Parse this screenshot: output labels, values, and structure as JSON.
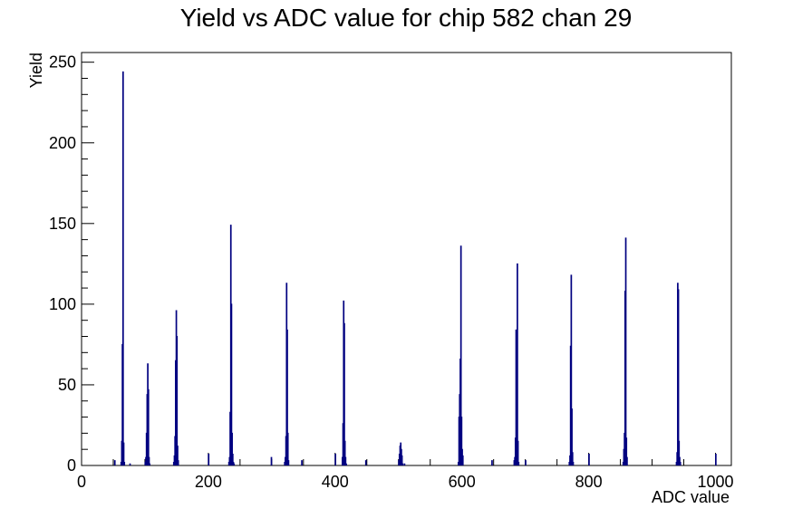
{
  "chart_data": {
    "type": "histogram",
    "title": "Yield vs ADC value for chip 582 chan 29",
    "xlabel": "ADC value",
    "ylabel": "Yield",
    "xlim": [
      0,
      1025
    ],
    "ylim": [
      0,
      256
    ],
    "x_ticks": [
      0,
      200,
      400,
      600,
      800,
      1000
    ],
    "y_ticks": [
      0,
      50,
      100,
      150,
      200,
      250
    ],
    "bin_width": 1,
    "line_color": "#000080",
    "grid": false,
    "legend": "none",
    "bins": [
      [
        52,
        3
      ],
      [
        62,
        2
      ],
      [
        63,
        15
      ],
      [
        64,
        75
      ],
      [
        65,
        244
      ],
      [
        66,
        14
      ],
      [
        67,
        2
      ],
      [
        76,
        1
      ],
      [
        100,
        2
      ],
      [
        101,
        5
      ],
      [
        102,
        20
      ],
      [
        103,
        44
      ],
      [
        104,
        63
      ],
      [
        105,
        47
      ],
      [
        106,
        5
      ],
      [
        107,
        1
      ],
      [
        145,
        2
      ],
      [
        146,
        6
      ],
      [
        147,
        18
      ],
      [
        148,
        65
      ],
      [
        149,
        96
      ],
      [
        150,
        80
      ],
      [
        151,
        12
      ],
      [
        152,
        3
      ],
      [
        200,
        7
      ],
      [
        232,
        2
      ],
      [
        233,
        5
      ],
      [
        234,
        33
      ],
      [
        235,
        149
      ],
      [
        236,
        100
      ],
      [
        237,
        20
      ],
      [
        238,
        7
      ],
      [
        239,
        2
      ],
      [
        240,
        1
      ],
      [
        299,
        5
      ],
      [
        320,
        2
      ],
      [
        321,
        5
      ],
      [
        322,
        18
      ],
      [
        323,
        113
      ],
      [
        324,
        84
      ],
      [
        325,
        20
      ],
      [
        326,
        3
      ],
      [
        347,
        3
      ],
      [
        400,
        7
      ],
      [
        411,
        5
      ],
      [
        412,
        26
      ],
      [
        413,
        102
      ],
      [
        414,
        88
      ],
      [
        415,
        15
      ],
      [
        416,
        5
      ],
      [
        417,
        1
      ],
      [
        448,
        3
      ],
      [
        500,
        3
      ],
      [
        501,
        7
      ],
      [
        502,
        12
      ],
      [
        503,
        14
      ],
      [
        504,
        10
      ],
      [
        505,
        6
      ],
      [
        506,
        1
      ],
      [
        509,
        1
      ],
      [
        594,
        2
      ],
      [
        595,
        30
      ],
      [
        596,
        44
      ],
      [
        597,
        66
      ],
      [
        598,
        136
      ],
      [
        599,
        30
      ],
      [
        600,
        10
      ],
      [
        601,
        6
      ],
      [
        647,
        3
      ],
      [
        682,
        3
      ],
      [
        683,
        5
      ],
      [
        684,
        17
      ],
      [
        685,
        84
      ],
      [
        686,
        47
      ],
      [
        687,
        125
      ],
      [
        688,
        15
      ],
      [
        689,
        2
      ],
      [
        700,
        3
      ],
      [
        769,
        2
      ],
      [
        770,
        6
      ],
      [
        771,
        74
      ],
      [
        772,
        118
      ],
      [
        773,
        35
      ],
      [
        774,
        8
      ],
      [
        775,
        2
      ],
      [
        800,
        7
      ],
      [
        854,
        2
      ],
      [
        855,
        10
      ],
      [
        856,
        20
      ],
      [
        857,
        108
      ],
      [
        858,
        141
      ],
      [
        859,
        17
      ],
      [
        860,
        5
      ],
      [
        938,
        2
      ],
      [
        939,
        8
      ],
      [
        940,
        113
      ],
      [
        941,
        109
      ],
      [
        942,
        15
      ],
      [
        943,
        5
      ],
      [
        944,
        2
      ],
      [
        1000,
        7
      ]
    ]
  }
}
